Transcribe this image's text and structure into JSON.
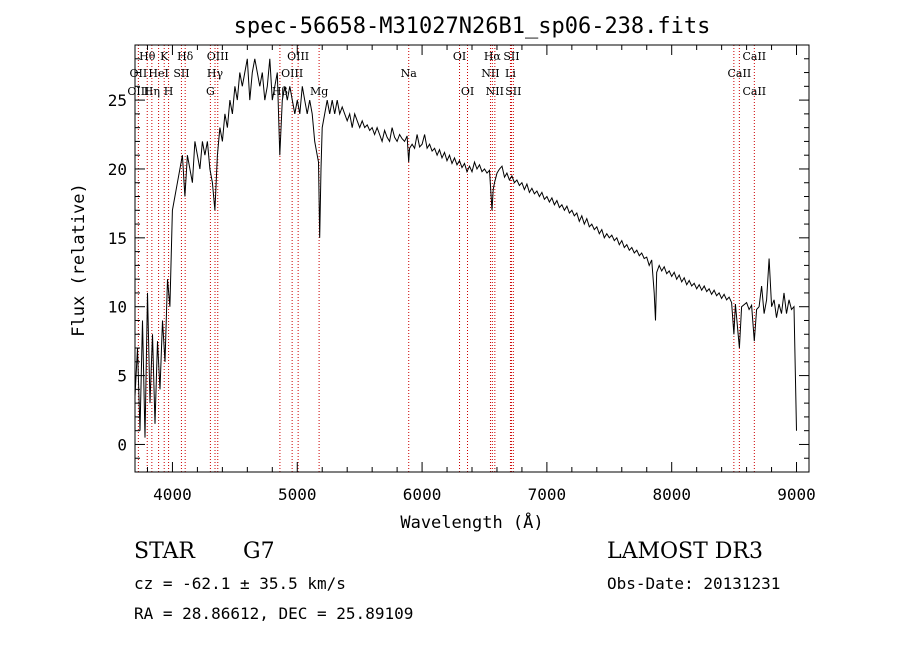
{
  "chart_data": {
    "type": "line",
    "title": "spec-56658-M31027N26B1_sp06-238.fits",
    "xlabel": "Wavelength (Å)",
    "ylabel": "Flux (relative)",
    "xlim": [
      3700,
      9100
    ],
    "ylim": [
      -2,
      29
    ],
    "x_ticks": [
      4000,
      5000,
      6000,
      7000,
      8000,
      9000
    ],
    "y_ticks": [
      0,
      5,
      10,
      15,
      20,
      25
    ],
    "grid": false,
    "series": [
      {
        "points": [
          [
            3700,
            3.5
          ],
          [
            3720,
            7
          ],
          [
            3740,
            1
          ],
          [
            3760,
            9
          ],
          [
            3780,
            0.5
          ],
          [
            3800,
            11
          ],
          [
            3820,
            3
          ],
          [
            3840,
            8
          ],
          [
            3860,
            1.5
          ],
          [
            3880,
            7.5
          ],
          [
            3900,
            4
          ],
          [
            3920,
            9
          ],
          [
            3940,
            6
          ],
          [
            3960,
            12
          ],
          [
            3980,
            10
          ],
          [
            4000,
            17
          ],
          [
            4020,
            18
          ],
          [
            4040,
            19
          ],
          [
            4060,
            20
          ],
          [
            4080,
            21
          ],
          [
            4100,
            18
          ],
          [
            4120,
            21
          ],
          [
            4140,
            20
          ],
          [
            4160,
            19
          ],
          [
            4180,
            22
          ],
          [
            4200,
            21
          ],
          [
            4220,
            20
          ],
          [
            4240,
            22
          ],
          [
            4260,
            21
          ],
          [
            4280,
            22
          ],
          [
            4300,
            20
          ],
          [
            4320,
            19
          ],
          [
            4340,
            17
          ],
          [
            4360,
            21
          ],
          [
            4380,
            23
          ],
          [
            4400,
            22
          ],
          [
            4420,
            24
          ],
          [
            4440,
            23
          ],
          [
            4460,
            25
          ],
          [
            4480,
            24
          ],
          [
            4500,
            26
          ],
          [
            4520,
            25
          ],
          [
            4540,
            27
          ],
          [
            4560,
            26
          ],
          [
            4580,
            27
          ],
          [
            4600,
            28
          ],
          [
            4620,
            25
          ],
          [
            4640,
            27
          ],
          [
            4660,
            28
          ],
          [
            4680,
            27
          ],
          [
            4700,
            26
          ],
          [
            4720,
            27
          ],
          [
            4740,
            25
          ],
          [
            4760,
            26
          ],
          [
            4780,
            28
          ],
          [
            4800,
            25
          ],
          [
            4820,
            26
          ],
          [
            4840,
            27
          ],
          [
            4860,
            21
          ],
          [
            4880,
            25
          ],
          [
            4900,
            26
          ],
          [
            4920,
            25
          ],
          [
            4940,
            26
          ],
          [
            4960,
            25
          ],
          [
            4980,
            24
          ],
          [
            5000,
            25
          ],
          [
            5020,
            24
          ],
          [
            5040,
            26
          ],
          [
            5060,
            25
          ],
          [
            5080,
            24
          ],
          [
            5100,
            25
          ],
          [
            5120,
            24
          ],
          [
            5140,
            22
          ],
          [
            5160,
            21
          ],
          [
            5170,
            20.5
          ],
          [
            5180,
            15
          ],
          [
            5190,
            20
          ],
          [
            5200,
            23
          ],
          [
            5220,
            24
          ],
          [
            5240,
            25
          ],
          [
            5260,
            24
          ],
          [
            5280,
            25
          ],
          [
            5300,
            24
          ],
          [
            5320,
            25
          ],
          [
            5340,
            24
          ],
          [
            5360,
            24.5
          ],
          [
            5380,
            24
          ],
          [
            5400,
            23.5
          ],
          [
            5420,
            24
          ],
          [
            5440,
            23
          ],
          [
            5460,
            24
          ],
          [
            5480,
            23.5
          ],
          [
            5500,
            23
          ],
          [
            5520,
            23.5
          ],
          [
            5540,
            23
          ],
          [
            5560,
            23.2
          ],
          [
            5580,
            22.8
          ],
          [
            5600,
            23
          ],
          [
            5620,
            22.5
          ],
          [
            5640,
            23
          ],
          [
            5660,
            22.5
          ],
          [
            5680,
            22
          ],
          [
            5700,
            22.8
          ],
          [
            5720,
            22.3
          ],
          [
            5740,
            22
          ],
          [
            5760,
            23
          ],
          [
            5780,
            22.3
          ],
          [
            5800,
            22
          ],
          [
            5820,
            22.5
          ],
          [
            5840,
            22.2
          ],
          [
            5860,
            22
          ],
          [
            5880,
            22.4
          ],
          [
            5893,
            20.5
          ],
          [
            5900,
            21.5
          ],
          [
            5920,
            21.8
          ],
          [
            5940,
            21.5
          ],
          [
            5960,
            22.5
          ],
          [
            5980,
            21.6
          ],
          [
            6000,
            21.8
          ],
          [
            6020,
            22.5
          ],
          [
            6040,
            21.5
          ],
          [
            6060,
            21.8
          ],
          [
            6080,
            21.3
          ],
          [
            6100,
            21.5
          ],
          [
            6120,
            21
          ],
          [
            6140,
            21.4
          ],
          [
            6160,
            20.8
          ],
          [
            6180,
            21.2
          ],
          [
            6200,
            20.6
          ],
          [
            6220,
            21
          ],
          [
            6240,
            20.4
          ],
          [
            6260,
            20.8
          ],
          [
            6280,
            20.3
          ],
          [
            6300,
            20.6
          ],
          [
            6320,
            20.1
          ],
          [
            6340,
            20.4
          ],
          [
            6360,
            19.8
          ],
          [
            6380,
            20.2
          ],
          [
            6400,
            19.8
          ],
          [
            6420,
            20.5
          ],
          [
            6440,
            20
          ],
          [
            6460,
            20.3
          ],
          [
            6480,
            19.8
          ],
          [
            6500,
            20
          ],
          [
            6520,
            19.7
          ],
          [
            6540,
            19.9
          ],
          [
            6560,
            17
          ],
          [
            6570,
            18.5
          ],
          [
            6580,
            19
          ],
          [
            6600,
            19.7
          ],
          [
            6620,
            20
          ],
          [
            6640,
            20.2
          ],
          [
            6660,
            19.4
          ],
          [
            6680,
            19.7
          ],
          [
            6700,
            19.2
          ],
          [
            6720,
            19.5
          ],
          [
            6740,
            19
          ],
          [
            6760,
            19.2
          ],
          [
            6780,
            18.8
          ],
          [
            6800,
            19
          ],
          [
            6820,
            18.5
          ],
          [
            6840,
            18.9
          ],
          [
            6860,
            18.3
          ],
          [
            6880,
            18.6
          ],
          [
            6900,
            18.2
          ],
          [
            6920,
            18.4
          ],
          [
            6940,
            18
          ],
          [
            6960,
            18.3
          ],
          [
            6980,
            17.8
          ],
          [
            7000,
            18
          ],
          [
            7020,
            17.6
          ],
          [
            7040,
            17.9
          ],
          [
            7060,
            17.4
          ],
          [
            7080,
            17.7
          ],
          [
            7100,
            17.2
          ],
          [
            7120,
            17.4
          ],
          [
            7140,
            17
          ],
          [
            7160,
            17.3
          ],
          [
            7180,
            16.8
          ],
          [
            7200,
            17
          ],
          [
            7220,
            16.6
          ],
          [
            7240,
            16.8
          ],
          [
            7260,
            16.2
          ],
          [
            7280,
            16.6
          ],
          [
            7300,
            16
          ],
          [
            7320,
            16.4
          ],
          [
            7340,
            15.8
          ],
          [
            7360,
            16
          ],
          [
            7380,
            15.6
          ],
          [
            7400,
            15.8
          ],
          [
            7420,
            15.3
          ],
          [
            7440,
            15.6
          ],
          [
            7460,
            15
          ],
          [
            7480,
            15.3
          ],
          [
            7500,
            15
          ],
          [
            7520,
            15.2
          ],
          [
            7540,
            14.8
          ],
          [
            7560,
            15
          ],
          [
            7580,
            14.5
          ],
          [
            7600,
            14.8
          ],
          [
            7620,
            14.3
          ],
          [
            7640,
            14.5
          ],
          [
            7660,
            14.1
          ],
          [
            7680,
            14.3
          ],
          [
            7700,
            13.9
          ],
          [
            7720,
            14.1
          ],
          [
            7740,
            13.7
          ],
          [
            7760,
            13.9
          ],
          [
            7780,
            13.5
          ],
          [
            7800,
            13.6
          ],
          [
            7820,
            13
          ],
          [
            7840,
            13.4
          ],
          [
            7860,
            11
          ],
          [
            7870,
            9
          ],
          [
            7880,
            12.5
          ],
          [
            7900,
            13
          ],
          [
            7920,
            12.6
          ],
          [
            7940,
            12.9
          ],
          [
            7960,
            12.4
          ],
          [
            7980,
            12.6
          ],
          [
            8000,
            12.2
          ],
          [
            8020,
            12.5
          ],
          [
            8040,
            12
          ],
          [
            8060,
            12.3
          ],
          [
            8080,
            11.8
          ],
          [
            8100,
            12.1
          ],
          [
            8120,
            11.6
          ],
          [
            8140,
            11.9
          ],
          [
            8160,
            11.5
          ],
          [
            8180,
            11.7
          ],
          [
            8200,
            11.3
          ],
          [
            8220,
            11.6
          ],
          [
            8240,
            11.2
          ],
          [
            8260,
            11.5
          ],
          [
            8280,
            11.1
          ],
          [
            8300,
            11.3
          ],
          [
            8320,
            10.9
          ],
          [
            8340,
            11.2
          ],
          [
            8360,
            10.8
          ],
          [
            8380,
            11
          ],
          [
            8400,
            10.6
          ],
          [
            8420,
            10.9
          ],
          [
            8440,
            10.5
          ],
          [
            8460,
            10.7
          ],
          [
            8480,
            10.3
          ],
          [
            8498,
            8
          ],
          [
            8510,
            10.2
          ],
          [
            8542,
            7
          ],
          [
            8560,
            10
          ],
          [
            8600,
            10.3
          ],
          [
            8620,
            9.8
          ],
          [
            8640,
            10.1
          ],
          [
            8662,
            7.5
          ],
          [
            8680,
            9.8
          ],
          [
            8700,
            10
          ],
          [
            8720,
            11.5
          ],
          [
            8740,
            9.5
          ],
          [
            8760,
            10.5
          ],
          [
            8780,
            13.5
          ],
          [
            8800,
            10
          ],
          [
            8820,
            10.5
          ],
          [
            8840,
            9.2
          ],
          [
            8860,
            10.2
          ],
          [
            8880,
            9.5
          ],
          [
            8900,
            11
          ],
          [
            8920,
            9.5
          ],
          [
            8940,
            10.5
          ],
          [
            8960,
            9.8
          ],
          [
            8980,
            10
          ],
          [
            9000,
            1
          ]
        ]
      }
    ],
    "annotations": [
      {
        "label": "Hθ",
        "wavelength": 3798,
        "row": 0
      },
      {
        "label": "OII",
        "wavelength": 3727,
        "row": 1
      },
      {
        "label": "OIII",
        "wavelength": 3727,
        "row": 2
      },
      {
        "label": "K",
        "wavelength": 3934,
        "row": 0
      },
      {
        "label": "HeI",
        "wavelength": 3889,
        "row": 1
      },
      {
        "label": "Hη",
        "wavelength": 3835,
        "row": 2
      },
      {
        "label": "Hδ",
        "wavelength": 4102,
        "row": 0
      },
      {
        "label": "SII",
        "wavelength": 4072,
        "row": 1
      },
      {
        "label": "H",
        "wavelength": 3969,
        "row": 2
      },
      {
        "label": "OIII",
        "wavelength": 4363,
        "row": 0
      },
      {
        "label": "Hγ",
        "wavelength": 4341,
        "row": 1
      },
      {
        "label": "G",
        "wavelength": 4304,
        "row": 2
      },
      {
        "label": "OIII",
        "wavelength": 5007,
        "row": 0
      },
      {
        "label": "OIII",
        "wavelength": 4959,
        "row": 1
      },
      {
        "label": "Hβ",
        "wavelength": 4861,
        "row": 2
      },
      {
        "label": "Mg",
        "wavelength": 5175,
        "row": 2
      },
      {
        "label": "Na",
        "wavelength": 5893,
        "row": 1
      },
      {
        "label": "OI",
        "wavelength": 6300,
        "row": 0
      },
      {
        "label": "OI",
        "wavelength": 6364,
        "row": 2
      },
      {
        "label": "Hα",
        "wavelength": 6563,
        "row": 0
      },
      {
        "label": "SII",
        "wavelength": 6716,
        "row": 0
      },
      {
        "label": "NII",
        "wavelength": 6548,
        "row": 1
      },
      {
        "label": "Li",
        "wavelength": 6708,
        "row": 1
      },
      {
        "label": "NII",
        "wavelength": 6583,
        "row": 2
      },
      {
        "label": "SII",
        "wavelength": 6731,
        "row": 2
      },
      {
        "label": "CaII",
        "wavelength": 8662,
        "row": 0
      },
      {
        "label": "CaII",
        "wavelength": 8542,
        "row": 1
      },
      {
        "label": "CaII",
        "wavelength": 8662,
        "row": 2
      }
    ],
    "line_wavelengths": [
      3727,
      3798,
      3835,
      3889,
      3934,
      3969,
      4072,
      4102,
      4304,
      4341,
      4363,
      4861,
      4959,
      5007,
      5175,
      5893,
      6300,
      6364,
      6548,
      6563,
      6583,
      6708,
      6716,
      6731,
      8498,
      8542,
      8662
    ],
    "line_color": "#cc0000"
  },
  "info": {
    "object_type": "STAR",
    "subclass": "G7",
    "survey": "LAMOST DR3",
    "redshift": "cz = -62.1 ± 35.5 km/s",
    "obs_date": "Obs-Date: 20131231",
    "coords": "RA =  28.86612, DEC =  25.89109"
  }
}
